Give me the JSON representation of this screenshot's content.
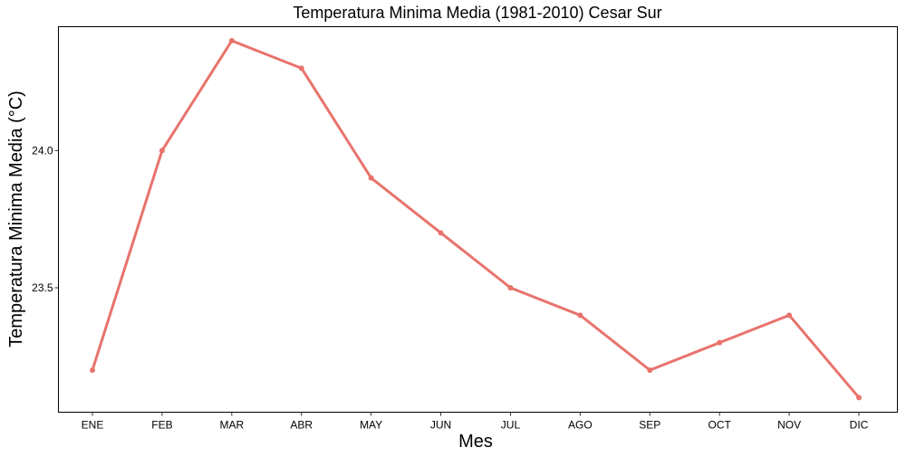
{
  "chart_data": {
    "type": "line",
    "title": "Temperatura Minima Media (1981-2010)  Cesar Sur",
    "xlabel": "Mes",
    "ylabel": "Temperatura Minima Media  (°C)",
    "categories": [
      "ENE",
      "FEB",
      "MAR",
      "ABR",
      "MAY",
      "JUN",
      "JUL",
      "AGO",
      "SEP",
      "OCT",
      "NOV",
      "DIC"
    ],
    "series": [
      {
        "values": [
          23.2,
          24.0,
          24.4,
          24.3,
          23.9,
          23.7,
          23.5,
          23.4,
          23.2,
          23.3,
          23.4,
          23.1
        ]
      }
    ],
    "ylim": [
      23.05,
      24.45
    ],
    "yticks": [
      23.5,
      24.0
    ],
    "ytick_labels": [
      "23.5",
      "24.0"
    ],
    "grid": false,
    "color": "#e8736c"
  }
}
